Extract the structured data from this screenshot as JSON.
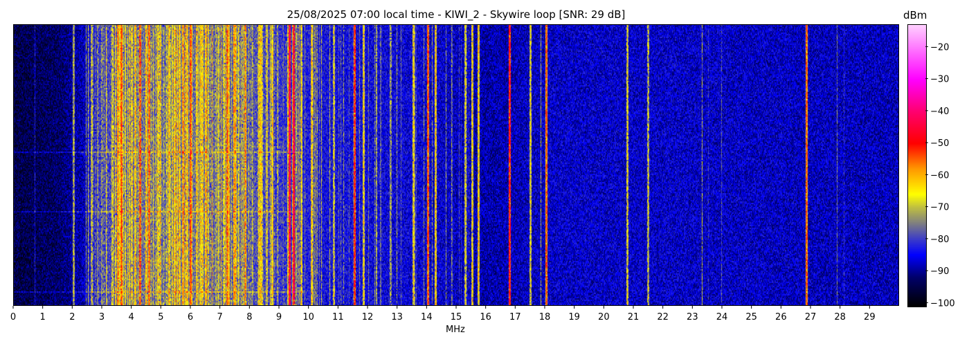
{
  "chart_data": {
    "type": "heatmap",
    "title": "25/08/2025 07:00 local time - KIWI_2 - Skywire loop [SNR: 29 dB]",
    "xlabel": "MHz",
    "ylabel": "",
    "xlim": [
      0,
      30
    ],
    "x_ticks": [
      "0",
      "1",
      "2",
      "3",
      "4",
      "5",
      "6",
      "7",
      "8",
      "9",
      "10",
      "11",
      "12",
      "13",
      "14",
      "15",
      "16",
      "17",
      "18",
      "19",
      "20",
      "21",
      "22",
      "23",
      "24",
      "25",
      "26",
      "27",
      "28",
      "29"
    ],
    "colorbar": {
      "label": "dBm",
      "range": [
        -101,
        -13
      ],
      "ticks": [
        "-20",
        "-30",
        "-40",
        "-50",
        "-60",
        "-70",
        "-80",
        "-90",
        "-100"
      ],
      "colormap_stops": [
        {
          "value": -101,
          "color": "#000000"
        },
        {
          "value": -92,
          "color": "#00006a"
        },
        {
          "value": -85,
          "color": "#0000ff"
        },
        {
          "value": -80,
          "color": "#3c3cc8"
        },
        {
          "value": -75,
          "color": "#808080"
        },
        {
          "value": -70,
          "color": "#c0c040"
        },
        {
          "value": -66,
          "color": "#ffff00"
        },
        {
          "value": -58,
          "color": "#ff9800"
        },
        {
          "value": -50,
          "color": "#ff0000"
        },
        {
          "value": -40,
          "color": "#ff0070"
        },
        {
          "value": -30,
          "color": "#ff00ff"
        },
        {
          "value": -13,
          "color": "#ffd0ff"
        }
      ]
    },
    "noise_floor_dbm": [
      {
        "mhz": 0,
        "dbm": -95
      },
      {
        "mhz": 1.5,
        "dbm": -93
      },
      {
        "mhz": 2.4,
        "dbm": -88
      },
      {
        "mhz": 3,
        "dbm": -80
      },
      {
        "mhz": 4,
        "dbm": -76
      },
      {
        "mhz": 6.5,
        "dbm": -76
      },
      {
        "mhz": 8,
        "dbm": -78
      },
      {
        "mhz": 10.5,
        "dbm": -84
      },
      {
        "mhz": 14,
        "dbm": -86
      },
      {
        "mhz": 16,
        "dbm": -89
      },
      {
        "mhz": 18,
        "dbm": -87
      },
      {
        "mhz": 22,
        "dbm": -87
      },
      {
        "mhz": 30,
        "dbm": -88
      }
    ],
    "signals": [
      {
        "mhz": 2.05,
        "dbm": -68
      },
      {
        "mhz": 2.65,
        "dbm": -66
      },
      {
        "mhz": 3.55,
        "dbm": -55
      },
      {
        "mhz": 3.65,
        "dbm": -50
      },
      {
        "mhz": 4.3,
        "dbm": -50
      },
      {
        "mhz": 4.6,
        "dbm": -52
      },
      {
        "mhz": 5.75,
        "dbm": -55
      },
      {
        "mhz": 6.0,
        "dbm": -50
      },
      {
        "mhz": 6.2,
        "dbm": -60
      },
      {
        "mhz": 7.25,
        "dbm": -52
      },
      {
        "mhz": 7.5,
        "dbm": -55
      },
      {
        "mhz": 7.85,
        "dbm": -55
      },
      {
        "mhz": 9.35,
        "dbm": -40
      },
      {
        "mhz": 9.5,
        "dbm": -42
      },
      {
        "mhz": 9.75,
        "dbm": -62
      },
      {
        "mhz": 10.1,
        "dbm": -60
      },
      {
        "mhz": 10.85,
        "dbm": -65
      },
      {
        "mhz": 11.55,
        "dbm": -48
      },
      {
        "mhz": 11.85,
        "dbm": -62
      },
      {
        "mhz": 13.55,
        "dbm": -62
      },
      {
        "mhz": 14.05,
        "dbm": -50
      },
      {
        "mhz": 14.3,
        "dbm": -60
      },
      {
        "mhz": 15.3,
        "dbm": -64
      },
      {
        "mhz": 15.55,
        "dbm": -62
      },
      {
        "mhz": 15.75,
        "dbm": -60
      },
      {
        "mhz": 16.8,
        "dbm": -45
      },
      {
        "mhz": 17.5,
        "dbm": -64
      },
      {
        "mhz": 18.05,
        "dbm": -52
      },
      {
        "mhz": 20.8,
        "dbm": -64
      },
      {
        "mhz": 21.5,
        "dbm": -66
      },
      {
        "mhz": 26.85,
        "dbm": -52
      }
    ]
  }
}
